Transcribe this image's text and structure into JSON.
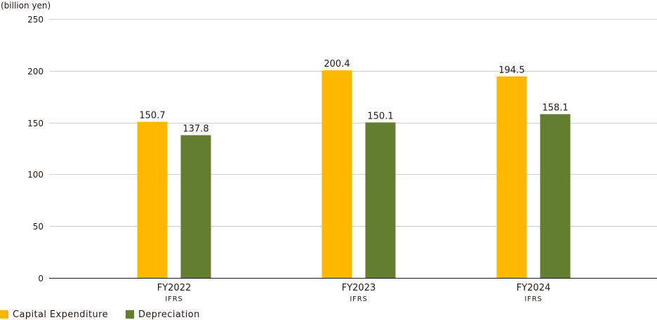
{
  "chart_data": {
    "type": "bar",
    "unit_label": "(billion yen)",
    "categories": [
      "FY2022",
      "FY2023",
      "FY2024"
    ],
    "category_sublabels": [
      "IFRS",
      "IFRS",
      "IFRS"
    ],
    "series": [
      {
        "name": "Capital Expenditure",
        "values": [
          150.7,
          200.4,
          194.5
        ],
        "color": "#FFB800"
      },
      {
        "name": "Depreciation",
        "values": [
          137.8,
          150.1,
          158.1
        ],
        "color": "#637E2F"
      }
    ],
    "data_labels": [
      [
        "150.7",
        "200.4",
        "194.5"
      ],
      [
        "137.8",
        "150.1",
        "158.1"
      ]
    ],
    "yticks": [
      0,
      50,
      100,
      150,
      200,
      250
    ],
    "ylim": [
      0,
      250
    ],
    "grid": true,
    "legend_position": "bottom-left"
  }
}
